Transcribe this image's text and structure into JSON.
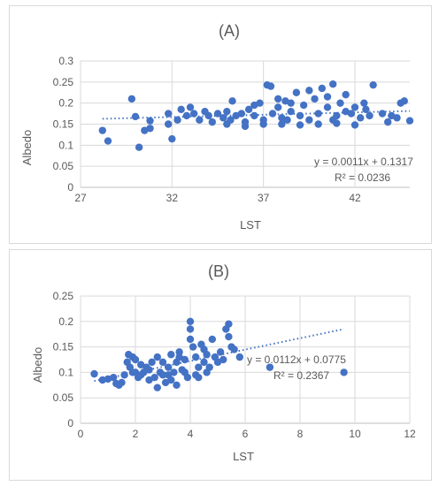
{
  "chart_data": [
    {
      "type": "scatter",
      "title": "(A)",
      "xlabel": "LST",
      "ylabel": "Albedo",
      "xlim": [
        27,
        45
      ],
      "ylim": [
        0,
        0.3
      ],
      "x_ticks": [
        "27",
        "32",
        "37",
        "42"
      ],
      "y_ticks": [
        "0",
        "0.05",
        "0.1",
        "0.15",
        "0.2",
        "0.25",
        "0.3"
      ],
      "grid": true,
      "point_color": "#4472c4",
      "trendline": {
        "slope": 0.0011,
        "intercept": 0.1317,
        "equation": "y = 0.0011x + 0.1317",
        "r2": "R² = 0.0236",
        "style": "dotted"
      },
      "points": [
        [
          28.2,
          0.135
        ],
        [
          28.5,
          0.11
        ],
        [
          29.8,
          0.21
        ],
        [
          30.0,
          0.168
        ],
        [
          30.2,
          0.095
        ],
        [
          30.5,
          0.135
        ],
        [
          30.8,
          0.14
        ],
        [
          30.8,
          0.158
        ],
        [
          31.8,
          0.175
        ],
        [
          32.0,
          0.115
        ],
        [
          31.8,
          0.15
        ],
        [
          32.3,
          0.16
        ],
        [
          32.5,
          0.185
        ],
        [
          32.8,
          0.17
        ],
        [
          33.0,
          0.19
        ],
        [
          33.2,
          0.175
        ],
        [
          33.5,
          0.16
        ],
        [
          33.8,
          0.18
        ],
        [
          34.0,
          0.17
        ],
        [
          34.2,
          0.155
        ],
        [
          34.5,
          0.175
        ],
        [
          34.8,
          0.165
        ],
        [
          35.0,
          0.18
        ],
        [
          35.2,
          0.16
        ],
        [
          35.3,
          0.205
        ],
        [
          35.5,
          0.17
        ],
        [
          35.8,
          0.175
        ],
        [
          36.0,
          0.155
        ],
        [
          36.2,
          0.185
        ],
        [
          36.5,
          0.17
        ],
        [
          36.8,
          0.2
        ],
        [
          37.0,
          0.16
        ],
        [
          37.2,
          0.243
        ],
        [
          37.4,
          0.24
        ],
        [
          37.5,
          0.175
        ],
        [
          37.8,
          0.19
        ],
        [
          38.0,
          0.165
        ],
        [
          38.2,
          0.205
        ],
        [
          38.5,
          0.18
        ],
        [
          38.8,
          0.225
        ],
        [
          39.0,
          0.17
        ],
        [
          39.2,
          0.195
        ],
        [
          39.5,
          0.16
        ],
        [
          39.8,
          0.21
        ],
        [
          40.0,
          0.175
        ],
        [
          40.2,
          0.235
        ],
        [
          40.5,
          0.19
        ],
        [
          40.8,
          0.245
        ],
        [
          41.0,
          0.17
        ],
        [
          41.2,
          0.2
        ],
        [
          41.5,
          0.18
        ],
        [
          41.8,
          0.175
        ],
        [
          42.0,
          0.19
        ],
        [
          42.3,
          0.165
        ],
        [
          42.5,
          0.2
        ],
        [
          42.8,
          0.17
        ],
        [
          43.0,
          0.243
        ],
        [
          43.5,
          0.175
        ],
        [
          44.0,
          0.17
        ],
        [
          44.3,
          0.165
        ],
        [
          44.5,
          0.2
        ],
        [
          44.7,
          0.205
        ],
        [
          45.0,
          0.158
        ],
        [
          35.0,
          0.15
        ],
        [
          36.0,
          0.145
        ],
        [
          37.0,
          0.15
        ],
        [
          38.0,
          0.15
        ],
        [
          39.0,
          0.148
        ],
        [
          40.0,
          0.15
        ],
        [
          41.0,
          0.152
        ],
        [
          42.0,
          0.148
        ],
        [
          36.5,
          0.195
        ],
        [
          38.5,
          0.2
        ],
        [
          40.5,
          0.215
        ],
        [
          39.5,
          0.23
        ],
        [
          41.5,
          0.22
        ],
        [
          37.8,
          0.21
        ],
        [
          38.3,
          0.16
        ],
        [
          40.8,
          0.16
        ],
        [
          42.6,
          0.185
        ],
        [
          43.8,
          0.155
        ]
      ]
    },
    {
      "type": "scatter",
      "title": "(B)",
      "xlabel": "LST",
      "ylabel": "Albedo",
      "xlim": [
        0,
        12
      ],
      "ylim": [
        0,
        0.25
      ],
      "x_ticks": [
        "0",
        "2",
        "4",
        "6",
        "8",
        "10",
        "12"
      ],
      "y_ticks": [
        "0",
        "0.05",
        "0.1",
        "0.15",
        "0.2",
        "0.25"
      ],
      "grid": true,
      "point_color": "#4472c4",
      "trendline": {
        "slope": 0.0112,
        "intercept": 0.0775,
        "equation": "y = 0.0112x + 0.0775",
        "r2": "R² = 0.2367",
        "style": "dotted"
      },
      "points": [
        [
          0.5,
          0.097
        ],
        [
          0.8,
          0.085
        ],
        [
          1.0,
          0.087
        ],
        [
          1.2,
          0.09
        ],
        [
          1.3,
          0.078
        ],
        [
          1.4,
          0.075
        ],
        [
          1.5,
          0.08
        ],
        [
          1.6,
          0.095
        ],
        [
          1.7,
          0.12
        ],
        [
          1.75,
          0.135
        ],
        [
          1.8,
          0.11
        ],
        [
          1.9,
          0.13
        ],
        [
          2.0,
          0.125
        ],
        [
          2.0,
          0.1
        ],
        [
          2.1,
          0.09
        ],
        [
          2.2,
          0.115
        ],
        [
          2.3,
          0.1
        ],
        [
          2.4,
          0.11
        ],
        [
          2.5,
          0.085
        ],
        [
          2.6,
          0.12
        ],
        [
          2.7,
          0.09
        ],
        [
          2.8,
          0.13
        ],
        [
          2.9,
          0.1
        ],
        [
          3.0,
          0.095
        ],
        [
          3.0,
          0.12
        ],
        [
          3.1,
          0.08
        ],
        [
          3.2,
          0.11
        ],
        [
          3.3,
          0.135
        ],
        [
          3.4,
          0.1
        ],
        [
          3.5,
          0.075
        ],
        [
          3.5,
          0.12
        ],
        [
          3.6,
          0.14
        ],
        [
          3.7,
          0.105
        ],
        [
          3.8,
          0.125
        ],
        [
          3.9,
          0.09
        ],
        [
          4.0,
          0.2
        ],
        [
          4.0,
          0.185
        ],
        [
          4.0,
          0.165
        ],
        [
          4.1,
          0.15
        ],
        [
          4.2,
          0.13
        ],
        [
          4.3,
          0.11
        ],
        [
          4.4,
          0.155
        ],
        [
          4.5,
          0.12
        ],
        [
          4.6,
          0.135
        ],
        [
          4.7,
          0.11
        ],
        [
          4.8,
          0.165
        ],
        [
          4.9,
          0.13
        ],
        [
          5.0,
          0.12
        ],
        [
          5.1,
          0.14
        ],
        [
          5.3,
          0.185
        ],
        [
          5.4,
          0.195
        ],
        [
          5.4,
          0.17
        ],
        [
          5.5,
          0.15
        ],
        [
          5.6,
          0.145
        ],
        [
          5.8,
          0.13
        ],
        [
          6.9,
          0.11
        ],
        [
          9.6,
          0.1
        ],
        [
          2.5,
          0.105
        ],
        [
          3.2,
          0.095
        ],
        [
          3.8,
          0.1
        ],
        [
          4.3,
          0.09
        ],
        [
          4.6,
          0.1
        ],
        [
          2.2,
          0.095
        ],
        [
          2.8,
          0.07
        ],
        [
          3.3,
          0.085
        ],
        [
          4.2,
          0.095
        ],
        [
          1.9,
          0.1
        ],
        [
          3.6,
          0.13
        ],
        [
          4.5,
          0.145
        ],
        [
          5.2,
          0.125
        ]
      ]
    }
  ]
}
